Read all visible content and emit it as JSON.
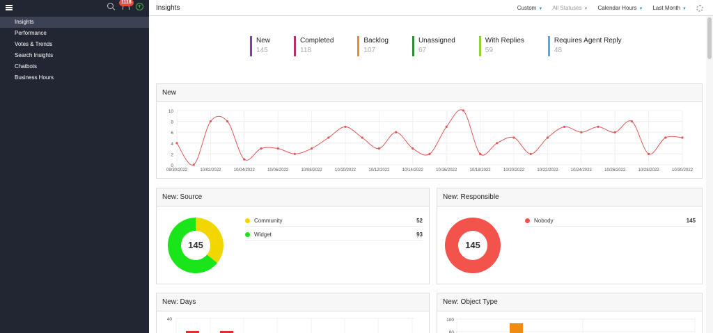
{
  "sidebar": {
    "notification_count": "1118",
    "items": [
      {
        "label": "Insights",
        "active": true
      },
      {
        "label": "Performance"
      },
      {
        "label": "Votes & Trends"
      },
      {
        "label": "Search Insights"
      },
      {
        "label": "Chatbots"
      },
      {
        "label": "Business Hours"
      }
    ]
  },
  "header": {
    "title": "Insights",
    "filters": {
      "range": "Custom",
      "status": "All Statuses",
      "hours": "Calendar Hours",
      "period": "Last Month"
    }
  },
  "stats": [
    {
      "label": "New",
      "value": "145",
      "color": "#7b3fa0"
    },
    {
      "label": "Completed",
      "value": "118",
      "color": "#b0306b"
    },
    {
      "label": "Backlog",
      "value": "107",
      "color": "#e8892a"
    },
    {
      "label": "Unassigned",
      "value": "67",
      "color": "#2e8b2e"
    },
    {
      "label": "With Replies",
      "value": "59",
      "color": "#8ed43a"
    },
    {
      "label": "Requires Agent Reply",
      "value": "48",
      "color": "#5aa8e0"
    }
  ],
  "panels": {
    "new": {
      "title": "New"
    },
    "source": {
      "title": "New: Source",
      "total": "145",
      "items": [
        {
          "label": "Community",
          "count": "52",
          "color": "#f2d600"
        },
        {
          "label": "Widget",
          "count": "93",
          "color": "#19e619"
        }
      ]
    },
    "responsible": {
      "title": "New: Responsible",
      "total": "145",
      "items": [
        {
          "label": "Nobody",
          "count": "145",
          "color": "#f2534a"
        }
      ]
    },
    "days": {
      "title": "New: Days"
    },
    "object_type": {
      "title": "New: Object Type"
    }
  },
  "chart_data": [
    {
      "type": "line",
      "title": "New",
      "x": [
        "09/30/2022",
        "10/01/2022",
        "10/02/2022",
        "10/03/2022",
        "10/04/2022",
        "10/05/2022",
        "10/06/2022",
        "10/07/2022",
        "10/08/2022",
        "10/09/2022",
        "10/10/2022",
        "10/11/2022",
        "10/12/2022",
        "10/13/2022",
        "10/14/2022",
        "10/15/2022",
        "10/16/2022",
        "10/17/2022",
        "10/18/2022",
        "10/19/2022",
        "10/20/2022",
        "10/21/2022",
        "10/22/2022",
        "10/23/2022",
        "10/24/2022",
        "10/25/2022",
        "10/26/2022",
        "10/27/2022",
        "10/28/2022",
        "10/29/2022",
        "10/30/2022"
      ],
      "x_ticks": [
        "09/30/2022",
        "10/02/2022",
        "10/04/2022",
        "10/06/2022",
        "10/08/2022",
        "10/10/2022",
        "10/12/2022",
        "10/14/2022",
        "10/16/2022",
        "10/18/2022",
        "10/20/2022",
        "10/22/2022",
        "10/24/2022",
        "10/26/2022",
        "10/28/2022",
        "10/30/2022"
      ],
      "y_ticks": [
        "0",
        "2",
        "4",
        "6",
        "8",
        "10"
      ],
      "values": [
        4,
        0,
        8,
        8,
        1,
        3,
        3,
        2,
        3,
        5,
        7,
        5,
        3,
        6,
        3,
        2,
        7,
        10,
        2,
        4,
        5,
        2,
        5,
        7,
        6,
        7,
        6,
        8,
        2,
        5,
        5
      ],
      "ylim": [
        0,
        10
      ],
      "color": "#e05656"
    },
    {
      "type": "pie",
      "title": "New: Source",
      "labels": [
        "Community",
        "Widget"
      ],
      "values": [
        52,
        93
      ],
      "colors": [
        "#f2d600",
        "#19e619"
      ]
    },
    {
      "type": "pie",
      "title": "New: Responsible",
      "labels": [
        "Nobody"
      ],
      "values": [
        145
      ],
      "colors": [
        "#f2534a"
      ]
    },
    {
      "type": "bar",
      "title": "New: Days",
      "y_ticks": [
        "40"
      ],
      "color": "#e82c2c"
    },
    {
      "type": "bar",
      "title": "New: Object Type",
      "y_ticks": [
        "100",
        "80"
      ],
      "color": "#f08a10"
    }
  ]
}
